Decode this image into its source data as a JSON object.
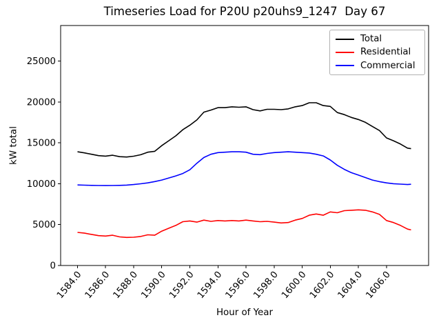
{
  "title": "Timeseries Load for P20U p20uhs9_1247  Day 67",
  "chart_data": {
    "type": "line",
    "title": "Timeseries Load for P20U p20uhs9_1247  Day 67",
    "xlabel": "Hour of Year",
    "ylabel": "kW total",
    "grid": false,
    "legend_position": "upper right",
    "xlim": [
      1582.8,
      1609.0
    ],
    "ylim": [
      0,
      29340
    ],
    "x_ticks": [
      1584,
      1586,
      1588,
      1590,
      1592,
      1594,
      1596,
      1598,
      1600,
      1602,
      1604,
      1606
    ],
    "x_tick_labels": [
      "1584.0",
      "1586.0",
      "1588.0",
      "1590.0",
      "1592.0",
      "1594.0",
      "1596.0",
      "1598.0",
      "1600.0",
      "1602.0",
      "1604.0",
      "1606.0"
    ],
    "y_ticks": [
      0,
      5000,
      10000,
      15000,
      20000,
      25000
    ],
    "y_tick_labels": [
      "0",
      "5000",
      "10000",
      "15000",
      "20000",
      "25000"
    ],
    "x": [
      1584.0,
      1584.5,
      1585.0,
      1585.5,
      1586.0,
      1586.5,
      1587.0,
      1587.5,
      1588.0,
      1588.5,
      1589.0,
      1589.5,
      1590.0,
      1590.5,
      1591.0,
      1591.5,
      1592.0,
      1592.5,
      1593.0,
      1593.5,
      1594.0,
      1594.5,
      1595.0,
      1595.5,
      1596.0,
      1596.5,
      1597.0,
      1597.5,
      1598.0,
      1598.5,
      1599.0,
      1599.5,
      1600.0,
      1600.5,
      1601.0,
      1601.5,
      1602.0,
      1602.5,
      1603.0,
      1603.5,
      1604.0,
      1604.5,
      1605.0,
      1605.5,
      1606.0,
      1606.5,
      1607.0,
      1607.5,
      1607.75
    ],
    "series": [
      {
        "name": "Total",
        "color": "#000000",
        "values": [
          13900,
          13770,
          13600,
          13430,
          13370,
          13480,
          13300,
          13260,
          13360,
          13540,
          13850,
          13960,
          14650,
          15250,
          15850,
          16600,
          17150,
          17800,
          18750,
          19000,
          19300,
          19300,
          19400,
          19350,
          19400,
          19050,
          18900,
          19100,
          19100,
          19050,
          19150,
          19400,
          19550,
          19900,
          19900,
          19550,
          19450,
          18700,
          18450,
          18100,
          17850,
          17500,
          17000,
          16500,
          15600,
          15250,
          14850,
          14350,
          14280
        ]
      },
      {
        "name": "Residential",
        "color": "#ff0000",
        "values": [
          4050,
          3950,
          3800,
          3650,
          3600,
          3700,
          3500,
          3430,
          3460,
          3550,
          3750,
          3700,
          4200,
          4550,
          4900,
          5350,
          5450,
          5300,
          5550,
          5400,
          5500,
          5450,
          5500,
          5450,
          5550,
          5450,
          5350,
          5400,
          5300,
          5200,
          5250,
          5550,
          5750,
          6150,
          6300,
          6150,
          6550,
          6450,
          6700,
          6750,
          6800,
          6750,
          6550,
          6250,
          5500,
          5250,
          4900,
          4450,
          4350
        ]
      },
      {
        "name": "Commercial",
        "color": "#0000ff",
        "values": [
          9850,
          9820,
          9800,
          9780,
          9770,
          9780,
          9800,
          9830,
          9900,
          9990,
          10100,
          10260,
          10450,
          10700,
          10950,
          11250,
          11700,
          12500,
          13200,
          13600,
          13800,
          13850,
          13900,
          13900,
          13850,
          13600,
          13550,
          13700,
          13800,
          13850,
          13900,
          13850,
          13800,
          13750,
          13600,
          13400,
          12900,
          12250,
          11750,
          11350,
          11050,
          10750,
          10450,
          10250,
          10100,
          10000,
          9950,
          9900,
          9930
        ]
      }
    ]
  }
}
